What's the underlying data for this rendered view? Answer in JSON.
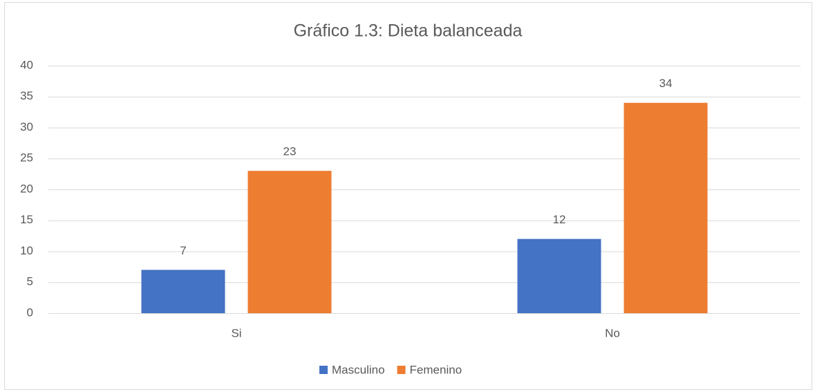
{
  "chart_data": {
    "type": "bar",
    "title": "Gráfico 1.3: Dieta balanceada",
    "categories": [
      "Si",
      "No"
    ],
    "series": [
      {
        "name": "Masculino",
        "color": "#4472c4",
        "values": [
          7,
          12
        ]
      },
      {
        "name": "Femenino",
        "color": "#ed7d31",
        "values": [
          23,
          34
        ]
      }
    ],
    "ylim": [
      0,
      40
    ],
    "yticks": [
      0,
      5,
      10,
      15,
      20,
      25,
      30,
      35,
      40
    ],
    "grid": true,
    "legend": "bottom"
  }
}
